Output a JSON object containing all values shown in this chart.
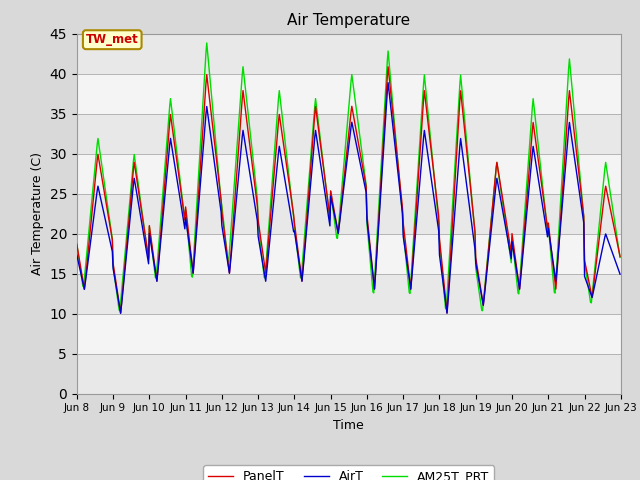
{
  "title": "Air Temperature",
  "ylabel": "Air Temperature (C)",
  "xlabel": "Time",
  "ylim": [
    0,
    45
  ],
  "yticks": [
    0,
    5,
    10,
    15,
    20,
    25,
    30,
    35,
    40,
    45
  ],
  "annotation": "TW_met",
  "annotation_color": "#cc0000",
  "annotation_bg": "#ffffcc",
  "annotation_border": "#aa8800",
  "legend_labels": [
    "PanelT",
    "AirT",
    "AM25T_PRT"
  ],
  "line_colors": [
    "#dd0000",
    "#0000cc",
    "#00dd00"
  ],
  "x_tick_labels": [
    "Jun 8",
    "Jun 9",
    "Jun 10",
    "Jun 11",
    "Jun 12",
    "Jun 13",
    "Jun 14",
    "Jun 15",
    "Jun 16",
    "Jun 17",
    "Jun 18",
    "Jun 19",
    "Jun 20",
    "Jun 21",
    "Jun 22",
    "Jun 23"
  ],
  "band_colors": [
    "#e8e8e8",
    "#f4f4f4"
  ],
  "fig_bg": "#d9d9d9",
  "day_min_r": [
    13,
    10,
    14,
    15,
    15,
    15,
    14,
    20,
    13,
    13,
    10,
    11,
    13,
    13,
    12
  ],
  "day_max_r": [
    30,
    29,
    35,
    40,
    38,
    35,
    36,
    36,
    41,
    38,
    38,
    29,
    34,
    38,
    26
  ],
  "day_min_b": [
    13,
    10,
    14,
    15,
    15,
    14,
    14,
    20,
    13,
    13,
    10,
    11,
    13,
    14,
    12
  ],
  "day_max_b": [
    26,
    27,
    32,
    36,
    33,
    31,
    33,
    34,
    39,
    33,
    32,
    27,
    31,
    34,
    20
  ],
  "day_min_g": [
    13,
    10,
    14,
    14,
    16,
    14,
    14,
    19,
    12,
    12,
    10,
    10,
    12,
    12,
    11
  ],
  "day_max_g": [
    32,
    30,
    37,
    44,
    41,
    38,
    37,
    40,
    43,
    40,
    40,
    29,
    37,
    42,
    29
  ]
}
